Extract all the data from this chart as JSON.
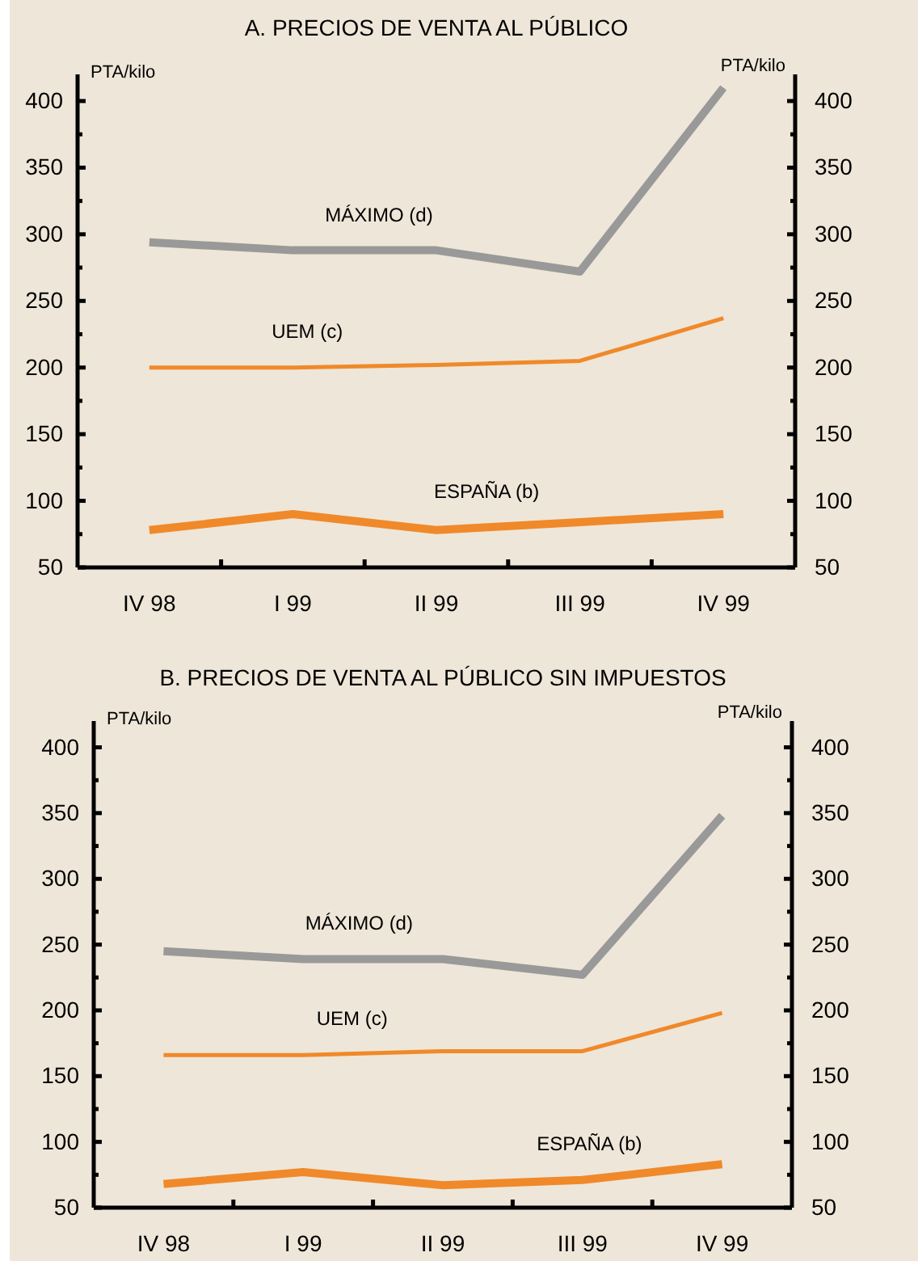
{
  "chart_data": [
    {
      "type": "line",
      "title": "A.  PRECIOS DE VENTA AL PÚBLICO",
      "ylabel": "PTA/kilo",
      "y2label": "PTA/kilo",
      "categories": [
        "IV 98",
        "I 99",
        "II 99",
        "III 99",
        "IV 99"
      ],
      "series": [
        {
          "name": "MÁXIMO (d)",
          "color": "#999999",
          "values": [
            294,
            288,
            288,
            272,
            410
          ]
        },
        {
          "name": "UEM (c)",
          "color": "#f0892a",
          "values": [
            200,
            200,
            202,
            205,
            237
          ]
        },
        {
          "name": "ESPAÑA (b)",
          "color": "#f0892a",
          "values": [
            78,
            90,
            78,
            84,
            90
          ]
        }
      ],
      "ylim": [
        50,
        420
      ],
      "yticks": [
        50,
        {
          "value": 75,
          "label": null
        },
        100,
        {
          "value": 125,
          "label": null
        },
        150,
        {
          "value": 175,
          "label": null
        },
        200,
        {
          "value": 225,
          "label": null
        },
        250,
        {
          "value": 275,
          "label": null
        },
        300,
        {
          "value": 325,
          "label": null
        },
        350,
        {
          "value": 375,
          "label": null
        },
        400
      ],
      "y2lim": [
        50,
        420
      ],
      "y2ticks": [
        50,
        {
          "value": 75,
          "label": null
        },
        100,
        {
          "value": 125,
          "label": null
        },
        150,
        {
          "value": 175,
          "label": null
        },
        200,
        {
          "value": 225,
          "label": null
        },
        250,
        {
          "value": 275,
          "label": null
        },
        300,
        {
          "value": 325,
          "label": null
        },
        350,
        {
          "value": 375,
          "label": null
        },
        400
      ],
      "grid": false,
      "marker": "none",
      "line_style": "solid"
    },
    {
      "type": "line",
      "title": "B.  PRECIOS DE VENTA AL PÚBLICO SIN IMPUESTOS",
      "ylabel": "PTA/kilo",
      "y2label": "PTA/kilo",
      "categories": [
        "IV 98",
        "I 99",
        "II 99",
        "III 99",
        "IV 99"
      ],
      "series": [
        {
          "name": "MÁXIMO (d)",
          "color": "#999999",
          "values": [
            245,
            239,
            239,
            227,
            348
          ]
        },
        {
          "name": "UEM (c)",
          "color": "#f0892a",
          "values": [
            166,
            166,
            169,
            169,
            198
          ]
        },
        {
          "name": "ESPAÑA (b)",
          "color": "#f0892a",
          "values": [
            68,
            77,
            67,
            71,
            83
          ]
        }
      ],
      "ylim": [
        50,
        420
      ],
      "yticks": [
        50,
        {
          "value": 75,
          "label": null
        },
        100,
        {
          "value": 125,
          "label": null
        },
        150,
        {
          "value": 175,
          "label": null
        },
        200,
        {
          "value": 225,
          "label": null
        },
        250,
        {
          "value": 275,
          "label": null
        },
        300,
        {
          "value": 325,
          "label": null
        },
        350,
        {
          "value": 375,
          "label": null
        },
        400
      ],
      "y2lim": [
        50,
        420
      ],
      "y2ticks": [
        50,
        {
          "value": 75,
          "label": null
        },
        100,
        {
          "value": 125,
          "label": null
        },
        150,
        {
          "value": 175,
          "label": null
        },
        200,
        {
          "value": 225,
          "label": null
        },
        250,
        {
          "value": 275,
          "label": null
        },
        300,
        {
          "value": 325,
          "label": null
        },
        350,
        {
          "value": 375,
          "label": null
        },
        400
      ],
      "grid": false,
      "marker": "none",
      "line_style": "solid"
    }
  ]
}
